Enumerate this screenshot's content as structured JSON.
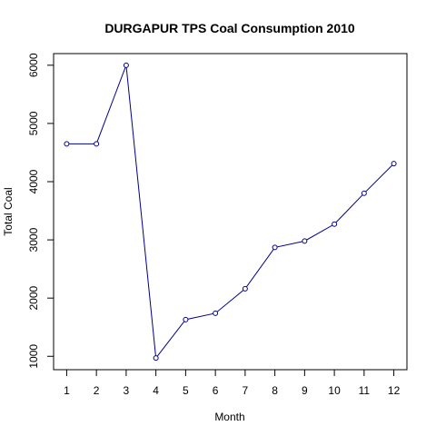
{
  "chart_data": {
    "type": "line",
    "title": "DURGAPUR TPS Coal Consumption 2010",
    "xlabel": "Month",
    "ylabel": "Total Coal",
    "x": [
      1,
      2,
      3,
      4,
      5,
      6,
      7,
      8,
      9,
      10,
      11,
      12
    ],
    "values": [
      4650,
      4650,
      6000,
      970,
      1630,
      1740,
      2160,
      2870,
      2980,
      3270,
      3800,
      4310
    ],
    "xlim": [
      0.56,
      12.44
    ],
    "ylim": [
      770,
      6200
    ],
    "xticks": [
      1,
      2,
      3,
      4,
      5,
      6,
      7,
      8,
      9,
      10,
      11,
      12
    ],
    "yticks": [
      1000,
      2000,
      3000,
      4000,
      5000,
      6000
    ],
    "grid": false,
    "legend": "none",
    "line_color": "#00008b",
    "marker": "open-circle"
  }
}
